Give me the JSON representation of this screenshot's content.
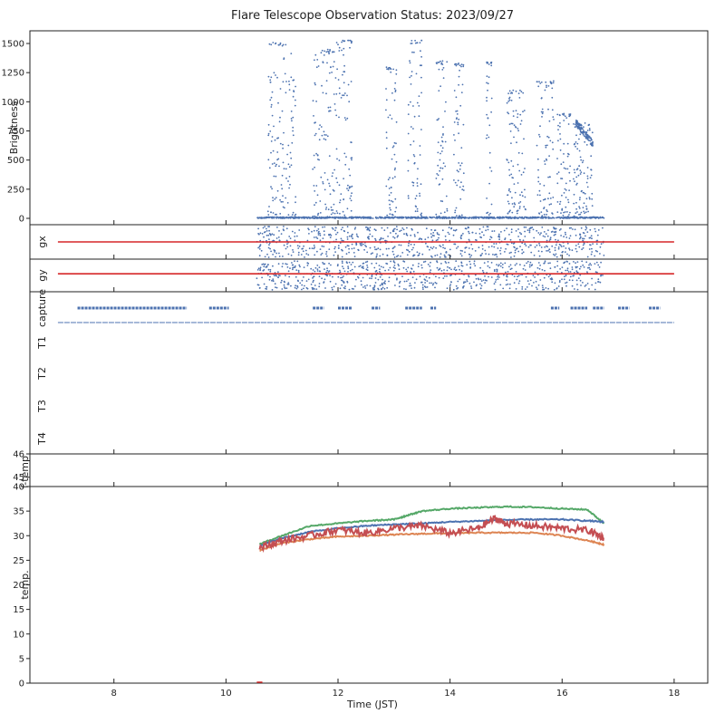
{
  "title": "Flare Telescope Observation Status: 2023/09/27",
  "xlabel": "Time (JST)",
  "x_ticks": [
    "8",
    "10",
    "12",
    "14",
    "16",
    "18"
  ],
  "colors": {
    "blue": "#4c72b0",
    "red": "#d62728",
    "orange": "#dd8452",
    "green": "#55a868",
    "crimson": "#c44e52"
  },
  "chart_data": [
    {
      "type": "scatter",
      "panel": "brightness",
      "ylabel": "Brightness",
      "xlim": [
        6.5,
        18.6
      ],
      "ylim": [
        -60,
        1610
      ],
      "y_ticks": [
        "0",
        "250",
        "500",
        "750",
        "1000",
        "1250",
        "1500"
      ],
      "bursts": [
        {
          "x0": 10.75,
          "x1": 11.25,
          "peak": 1510
        },
        {
          "x0": 11.55,
          "x1": 11.95,
          "peak": 1450
        },
        {
          "x0": 11.95,
          "x1": 12.25,
          "peak": 1530
        },
        {
          "x0": 12.85,
          "x1": 13.05,
          "peak": 1300
        },
        {
          "x0": 13.25,
          "x1": 13.5,
          "peak": 1530
        },
        {
          "x0": 13.75,
          "x1": 13.95,
          "peak": 1350
        },
        {
          "x0": 14.05,
          "x1": 14.25,
          "peak": 1330
        },
        {
          "x0": 14.65,
          "x1": 14.75,
          "peak": 1340
        },
        {
          "x0": 15.0,
          "x1": 15.35,
          "peak": 1100
        },
        {
          "x0": 15.55,
          "x1": 15.85,
          "peak": 1180
        },
        {
          "x0": 15.9,
          "x1": 16.15,
          "peak": 900
        },
        {
          "x0": 16.2,
          "x1": 16.55,
          "peak": 820
        }
      ],
      "baseline_range": [
        10.55,
        16.75
      ]
    },
    {
      "type": "scatter",
      "panel": "gx",
      "ylabel": "gx",
      "ref_line": {
        "x0": 7.0,
        "x1": 18.0
      },
      "data_range": [
        10.55,
        16.75
      ]
    },
    {
      "type": "scatter",
      "panel": "gy",
      "ylabel": "gy",
      "ref_line": {
        "x0": 7.0,
        "x1": 18.0
      },
      "data_range": [
        10.55,
        16.75
      ]
    },
    {
      "type": "scatter",
      "panel": "capture",
      "y_labels": [
        "capture",
        "T1",
        "T2",
        "T3",
        "T4"
      ],
      "capture_segments": [
        [
          7.35,
          9.3
        ],
        [
          9.7,
          10.05
        ],
        [
          11.55,
          11.75
        ],
        [
          12.0,
          12.25
        ],
        [
          12.6,
          12.75
        ],
        [
          13.2,
          13.5
        ],
        [
          13.65,
          13.75
        ],
        [
          15.8,
          15.95
        ],
        [
          16.15,
          16.45
        ],
        [
          16.55,
          16.75
        ],
        [
          17.0,
          17.2
        ],
        [
          17.55,
          17.75
        ]
      ],
      "t1_range": [
        7.0,
        18.0
      ]
    },
    {
      "type": "line",
      "panel": "f-temp",
      "ylabel": "f-temp",
      "y_ticks": [
        "46",
        "45"
      ],
      "ylim": [
        44.6,
        46.0
      ]
    },
    {
      "type": "line",
      "panel": "temp",
      "ylabel": "temp.",
      "xlabel": "Time (JST)",
      "xlim": [
        6.5,
        18.6
      ],
      "ylim": [
        0,
        40
      ],
      "y_ticks": [
        "0",
        "5",
        "10",
        "15",
        "20",
        "25",
        "30",
        "35",
        "40"
      ],
      "series": [
        {
          "color_key": "green",
          "x": [
            10.6,
            11.0,
            11.5,
            12.0,
            12.5,
            13.0,
            13.2,
            13.5,
            14.0,
            14.5,
            15.0,
            15.5,
            16.0,
            16.45,
            16.75
          ],
          "y": [
            28.3,
            30.0,
            32.0,
            32.5,
            33.0,
            33.3,
            34.0,
            35.0,
            35.5,
            35.7,
            35.9,
            35.8,
            35.5,
            35.3,
            32.5
          ]
        },
        {
          "color_key": "blue",
          "x": [
            10.6,
            11.0,
            11.5,
            12.0,
            12.5,
            13.0,
            13.5,
            14.0,
            14.5,
            15.0,
            15.5,
            16.0,
            16.5,
            16.75
          ],
          "y": [
            28.0,
            29.5,
            30.8,
            31.5,
            32.0,
            32.3,
            32.5,
            32.8,
            33.0,
            33.2,
            33.3,
            33.3,
            33.0,
            32.8
          ]
        },
        {
          "color_key": "orange",
          "x": [
            10.6,
            11.0,
            11.5,
            12.0,
            12.5,
            13.0,
            13.5,
            14.0,
            14.5,
            15.0,
            15.5,
            16.0,
            16.5,
            16.75
          ],
          "y": [
            27.0,
            28.5,
            29.3,
            29.8,
            30.0,
            30.2,
            30.4,
            30.5,
            30.6,
            30.6,
            30.6,
            30.0,
            28.9,
            28.2
          ]
        },
        {
          "color_key": "crimson",
          "x": [
            10.6,
            11.0,
            11.5,
            12.0,
            12.5,
            13.0,
            13.5,
            14.0,
            14.5,
            14.8,
            15.0,
            15.5,
            16.0,
            16.5,
            16.75
          ],
          "y": [
            27.5,
            29.0,
            30.0,
            31.2,
            30.5,
            31.5,
            32.0,
            30.5,
            31.5,
            33.5,
            32.5,
            32.0,
            31.5,
            31.0,
            29.5
          ]
        }
      ]
    }
  ]
}
